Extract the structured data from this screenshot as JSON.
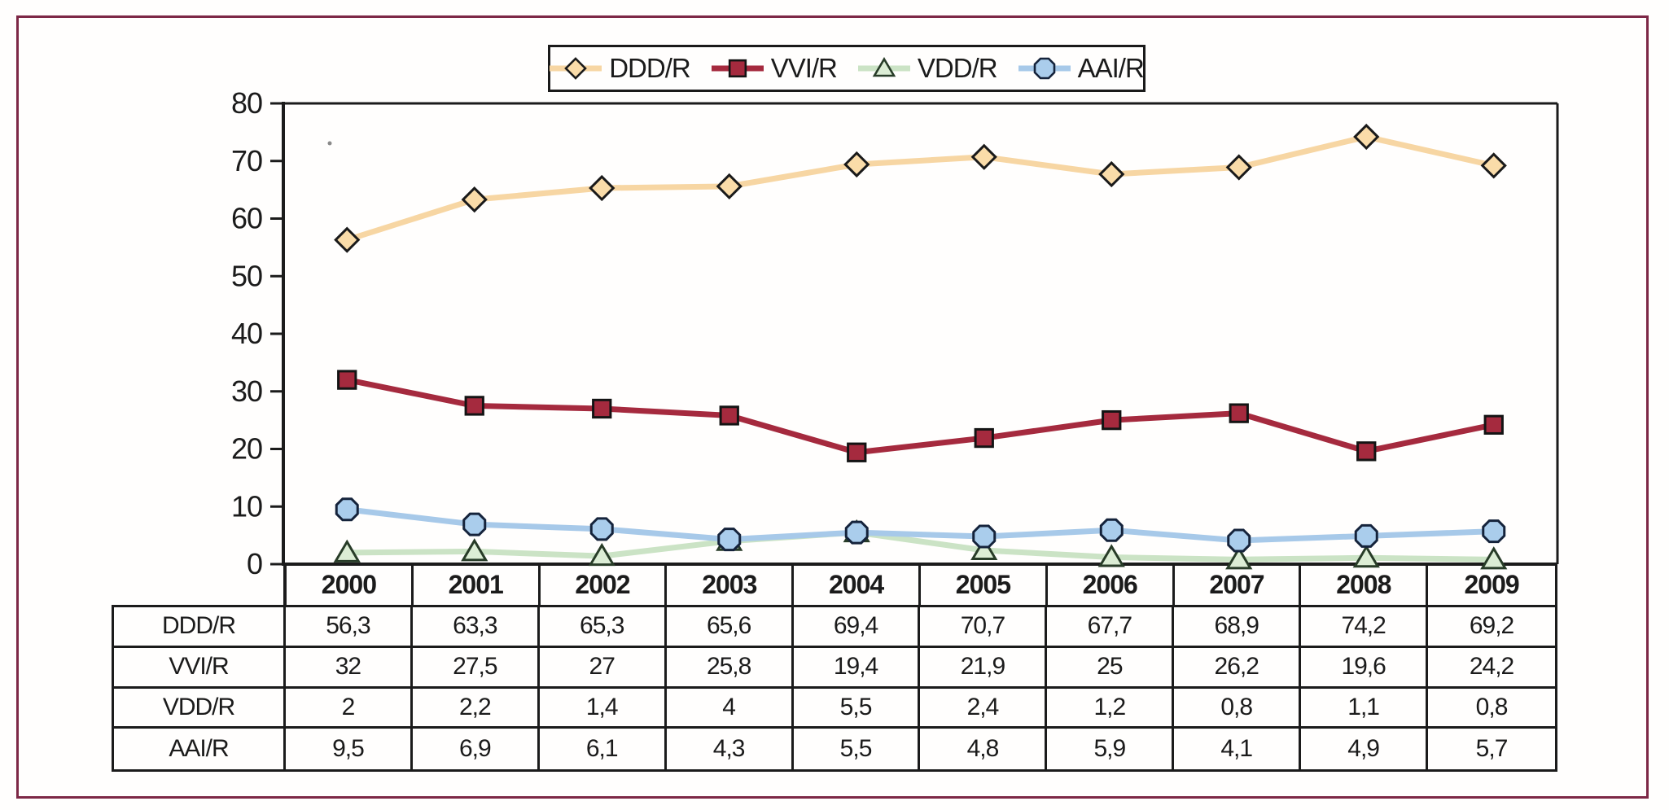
{
  "figure": {
    "frame_color": "#7d2846",
    "background_color": "#fffefd",
    "axis_color": "#1b1b1b",
    "text_color": "#1b1b1b"
  },
  "legend": {
    "position": "top-center",
    "items": [
      {
        "label": "DDD/R",
        "marker": "diamond",
        "line_color": "#f7d6a3",
        "fill": "#fadca9",
        "stroke": "#1a1a1a"
      },
      {
        "label": "VVI/R",
        "marker": "square",
        "line_color": "#a52a3e",
        "fill": "#a52a3e",
        "stroke": "#141414"
      },
      {
        "label": "VDD/R",
        "marker": "triangle",
        "line_color": "#cbe3c5",
        "fill": "#dcedd5",
        "stroke": "#283c28"
      },
      {
        "label": "AAI/R",
        "marker": "octagon",
        "line_color": "#a7c9e9",
        "fill": "#aacdec",
        "stroke": "#15233b"
      }
    ]
  },
  "chart_data": {
    "type": "line",
    "title": "",
    "xlabel": "",
    "ylabel": "",
    "categories": [
      "2000",
      "2001",
      "2002",
      "2003",
      "2004",
      "2005",
      "2006",
      "2007",
      "2008",
      "2009"
    ],
    "ylim": [
      0,
      80
    ],
    "ytick_step": 10,
    "grid": false,
    "legend_position": "top-center",
    "series": [
      {
        "name": "DDD/R",
        "marker": "diamond",
        "line_color": "#f7d6a3",
        "fill": "#fadca9",
        "stroke": "#1a1a1a",
        "values": [
          56.3,
          63.3,
          65.3,
          65.6,
          69.4,
          70.7,
          67.7,
          68.9,
          74.2,
          69.2
        ]
      },
      {
        "name": "VVI/R",
        "marker": "square",
        "line_color": "#a52a3e",
        "fill": "#a52a3e",
        "stroke": "#141414",
        "values": [
          32,
          27.5,
          27,
          25.8,
          19.4,
          21.9,
          25,
          26.2,
          19.6,
          24.2
        ]
      },
      {
        "name": "VDD/R",
        "marker": "triangle",
        "line_color": "#cbe3c5",
        "fill": "#dcedd5",
        "stroke": "#283c28",
        "values": [
          2,
          2.2,
          1.4,
          4,
          5.5,
          2.4,
          1.2,
          0.8,
          1.1,
          0.8
        ]
      },
      {
        "name": "AAI/R",
        "marker": "octagon",
        "line_color": "#a7c9e9",
        "fill": "#aacdec",
        "stroke": "#15233b",
        "values": [
          9.5,
          6.9,
          6.1,
          4.3,
          5.5,
          4.8,
          5.9,
          4.1,
          4.9,
          5.7
        ]
      }
    ]
  },
  "table": {
    "col_headers": [
      "2000",
      "2001",
      "2002",
      "2003",
      "2004",
      "2005",
      "2006",
      "2007",
      "2008",
      "2009"
    ],
    "rows": [
      {
        "header": "DDD/R",
        "cells": [
          "56,3",
          "63,3",
          "65,3",
          "65,6",
          "69,4",
          "70,7",
          "67,7",
          "68,9",
          "74,2",
          "69,2"
        ]
      },
      {
        "header": "VVI/R",
        "cells": [
          "32",
          "27,5",
          "27",
          "25,8",
          "19,4",
          "21,9",
          "25",
          "26,2",
          "19,6",
          "24,2"
        ]
      },
      {
        "header": "VDD/R",
        "cells": [
          "2",
          "2,2",
          "1,4",
          "4",
          "5,5",
          "2,4",
          "1,2",
          "0,8",
          "1,1",
          "0,8"
        ]
      },
      {
        "header": "AAI/R",
        "cells": [
          "9,5",
          "6,9",
          "6,1",
          "4,3",
          "5,5",
          "4,8",
          "5,9",
          "4,1",
          "4,9",
          "5,7"
        ]
      }
    ]
  }
}
